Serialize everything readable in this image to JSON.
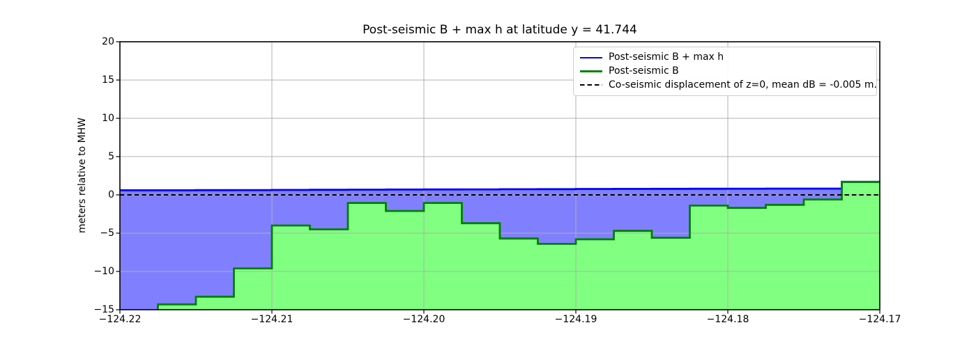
{
  "chart_data": {
    "type": "area",
    "title": "Post-seismic B + max h at latitude y = 41.744",
    "ylabel": "meters relative to MHW",
    "xlabel": "",
    "xlim": [
      -124.22,
      -124.17
    ],
    "ylim": [
      -15,
      20
    ],
    "grid": true,
    "legend_position": "upper right",
    "xticks": [
      {
        "v": -124.22,
        "label": "−124.22"
      },
      {
        "v": -124.21,
        "label": "−124.21"
      },
      {
        "v": -124.2,
        "label": "−124.20"
      },
      {
        "v": -124.19,
        "label": "−124.19"
      },
      {
        "v": -124.18,
        "label": "−124.18"
      },
      {
        "v": -124.17,
        "label": "−124.17"
      }
    ],
    "yticks": [
      {
        "v": 20,
        "label": "20"
      },
      {
        "v": 15,
        "label": "15"
      },
      {
        "v": 10,
        "label": "10"
      },
      {
        "v": 5,
        "label": "5"
      },
      {
        "v": 0,
        "label": "0"
      },
      {
        "v": -5,
        "label": "−5"
      },
      {
        "v": -10,
        "label": "−10"
      },
      {
        "v": -15,
        "label": "−15"
      }
    ],
    "cell_edges": [
      -124.22,
      -124.2175,
      -124.215,
      -124.2125,
      -124.21,
      -124.2075,
      -124.205,
      -124.2025,
      -124.2,
      -124.1975,
      -124.195,
      -124.1925,
      -124.19,
      -124.1875,
      -124.185,
      -124.1825,
      -124.18,
      -124.1775,
      -124.175,
      -124.1725,
      -124.17
    ],
    "series": [
      {
        "name": "Post-seismic B + max h",
        "draw": "step",
        "color": "#0000ff",
        "fill": "#8080ff",
        "values": [
          0.6,
          0.6,
          0.62,
          0.63,
          0.65,
          0.66,
          0.68,
          0.7,
          0.71,
          0.72,
          0.74,
          0.75,
          0.77,
          0.78,
          0.79,
          0.8,
          0.81,
          0.82,
          0.82,
          1.7
        ]
      },
      {
        "name": "Post-seismic B",
        "draw": "step",
        "color": "#008000",
        "fill": "#80ff80",
        "values": [
          -15.6,
          -14.3,
          -13.3,
          -9.6,
          -4.0,
          -4.5,
          -1.05,
          -2.1,
          -1.05,
          -3.7,
          -5.7,
          -6.4,
          -5.8,
          -4.7,
          -5.6,
          -1.4,
          -1.7,
          -1.3,
          -0.6,
          1.7
        ]
      }
    ],
    "reference_line": {
      "label": "Co-seismic displacement of z=0, mean dB = -0.005 m.",
      "y": 0,
      "color": "#000000",
      "style": "dashed"
    },
    "legend": [
      {
        "label": "Post-seismic B + max h",
        "color": "#0000ff",
        "style": "solid",
        "icon": "blue-solid-line-swatch"
      },
      {
        "label": "Post-seismic B",
        "color": "#008000",
        "style": "solid",
        "icon": "green-solid-line-swatch"
      },
      {
        "label": "Co-seismic displacement of z=0, mean dB = -0.005 m.",
        "color": "#000000",
        "style": "dashed",
        "icon": "black-dashed-line-swatch"
      }
    ]
  }
}
